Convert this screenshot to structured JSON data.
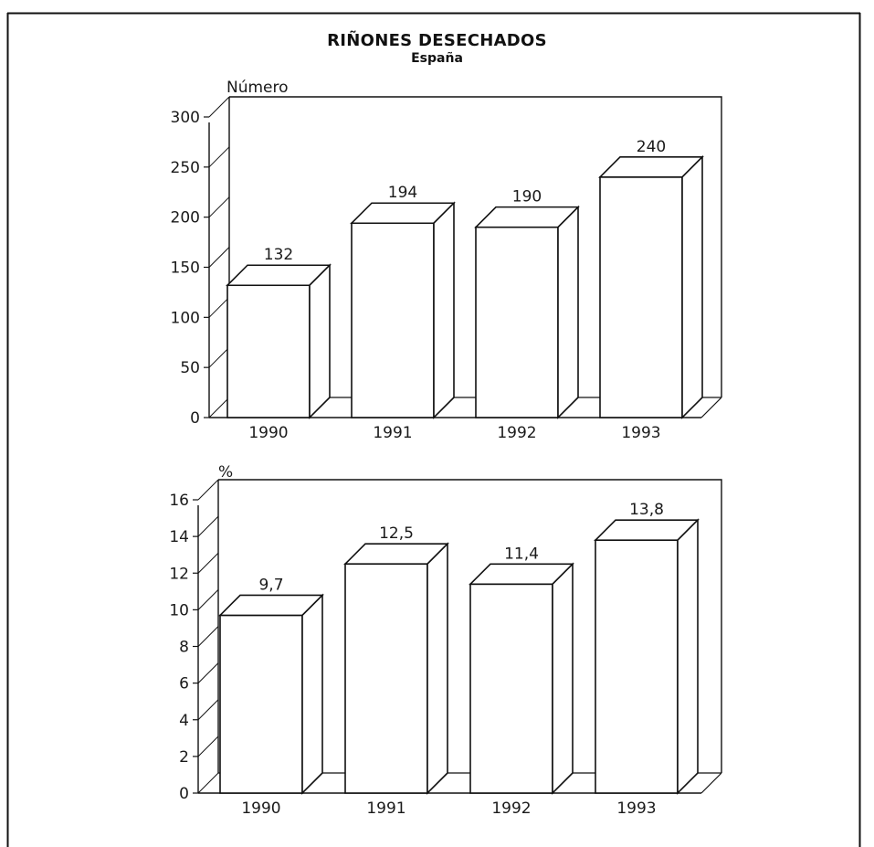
{
  "title": "RIÑONES DESECHADOS",
  "subtitle": "España",
  "chart_data": [
    {
      "type": "bar",
      "ylabel": "Número",
      "xlabel": "",
      "categories": [
        "1990",
        "1991",
        "1992",
        "1993"
      ],
      "values": [
        132,
        194,
        190,
        240
      ],
      "value_labels": [
        "132",
        "194",
        "190",
        "240"
      ],
      "ylim": [
        0,
        300
      ],
      "yticks": [
        0,
        50,
        100,
        150,
        200,
        250,
        300
      ],
      "ytick_labels": [
        "0",
        "50",
        "100",
        "150",
        "200",
        "250",
        "300"
      ],
      "style": "3d",
      "grid": false,
      "legend": "none"
    },
    {
      "type": "bar",
      "ylabel": "%",
      "xlabel": "",
      "categories": [
        "1990",
        "1991",
        "1992",
        "1993"
      ],
      "values": [
        9.7,
        12.5,
        11.4,
        13.8
      ],
      "value_labels": [
        "9,7",
        "12,5",
        "11,4",
        "13,8"
      ],
      "ylim": [
        0,
        16
      ],
      "yticks": [
        0,
        2,
        4,
        6,
        8,
        10,
        12,
        14,
        16
      ],
      "ytick_labels": [
        "0",
        "2",
        "4",
        "6",
        "8",
        "10",
        "12",
        "14",
        "16"
      ],
      "style": "3d",
      "grid": false,
      "legend": "none"
    }
  ]
}
